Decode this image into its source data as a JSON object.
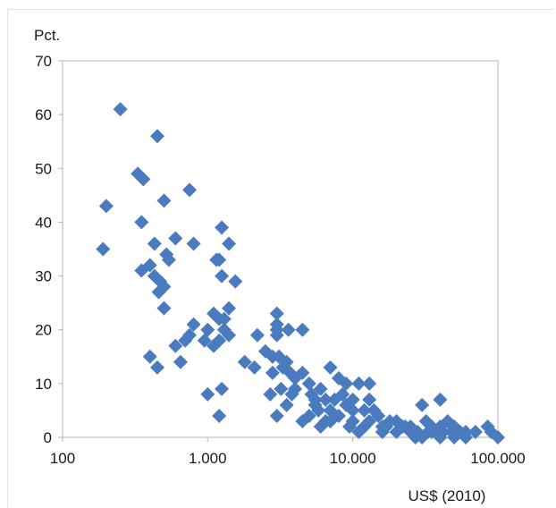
{
  "chart_data": {
    "type": "scatter",
    "title": "",
    "xlabel": "US$ (2010)",
    "ylabel": "Pct.",
    "x_scale": "log",
    "xlim": [
      100,
      100000
    ],
    "ylim": [
      0,
      70
    ],
    "x_ticks": [
      100,
      1000,
      10000,
      100000
    ],
    "x_tick_labels": [
      "100",
      "1.000",
      "10.000",
      "100.000"
    ],
    "y_ticks": [
      0,
      10,
      20,
      30,
      40,
      50,
      60,
      70
    ],
    "y_tick_labels": [
      "0",
      "10",
      "20",
      "30",
      "40",
      "50",
      "60",
      "70"
    ],
    "grid": false,
    "legend": "none",
    "marker": "diamond",
    "marker_color": "#4a7bbf",
    "points": [
      [
        250,
        61
      ],
      [
        450,
        56
      ],
      [
        330,
        49
      ],
      [
        360,
        48
      ],
      [
        750,
        46
      ],
      [
        200,
        43
      ],
      [
        500,
        44
      ],
      [
        350,
        40
      ],
      [
        1250,
        39
      ],
      [
        1400,
        36
      ],
      [
        600,
        37
      ],
      [
        430,
        36
      ],
      [
        800,
        36
      ],
      [
        190,
        35
      ],
      [
        520,
        34
      ],
      [
        540,
        33
      ],
      [
        1150,
        33
      ],
      [
        1200,
        33
      ],
      [
        400,
        32
      ],
      [
        350,
        31
      ],
      [
        430,
        30
      ],
      [
        1250,
        30
      ],
      [
        1550,
        29
      ],
      [
        470,
        29
      ],
      [
        500,
        28
      ],
      [
        460,
        27
      ],
      [
        1400,
        24
      ],
      [
        500,
        24
      ],
      [
        1100,
        23
      ],
      [
        3000,
        23
      ],
      [
        1200,
        22
      ],
      [
        1300,
        22
      ],
      [
        3000,
        21
      ],
      [
        800,
        21
      ],
      [
        3000,
        20
      ],
      [
        4500,
        20
      ],
      [
        1000,
        20
      ],
      [
        1300,
        20
      ],
      [
        1400,
        19
      ],
      [
        3600,
        20
      ],
      [
        750,
        19
      ],
      [
        700,
        18
      ],
      [
        950,
        18
      ],
      [
        1100,
        17
      ],
      [
        1200,
        18
      ],
      [
        1800,
        14
      ],
      [
        2200,
        19
      ],
      [
        3000,
        19
      ],
      [
        2100,
        13
      ],
      [
        2500,
        16
      ],
      [
        600,
        17
      ],
      [
        650,
        14
      ],
      [
        400,
        15
      ],
      [
        450,
        13
      ],
      [
        1000,
        8
      ],
      [
        1200,
        4
      ],
      [
        1250,
        9
      ],
      [
        2800,
        15
      ],
      [
        3100,
        15
      ],
      [
        3500,
        14
      ],
      [
        2800,
        12
      ],
      [
        3300,
        13
      ],
      [
        3700,
        12
      ],
      [
        4000,
        11
      ],
      [
        4500,
        12
      ],
      [
        2700,
        8
      ],
      [
        3200,
        9
      ],
      [
        3800,
        8
      ],
      [
        3000,
        4
      ],
      [
        4500,
        3
      ],
      [
        5000,
        10
      ],
      [
        5200,
        8
      ],
      [
        5500,
        6
      ],
      [
        6000,
        9
      ],
      [
        6500,
        7
      ],
      [
        5800,
        5
      ],
      [
        6500,
        3
      ],
      [
        7000,
        13
      ],
      [
        8000,
        11
      ],
      [
        9000,
        10
      ],
      [
        11000,
        10
      ],
      [
        13000,
        10
      ],
      [
        7500,
        7
      ],
      [
        9000,
        6
      ],
      [
        10000,
        5
      ],
      [
        12000,
        5
      ],
      [
        14000,
        5
      ],
      [
        10000,
        3
      ],
      [
        12000,
        2
      ],
      [
        15000,
        4
      ],
      [
        16000,
        2
      ],
      [
        18000,
        3
      ],
      [
        20000,
        3
      ],
      [
        22000,
        2
      ],
      [
        25000,
        2
      ],
      [
        28000,
        1
      ],
      [
        30000,
        6
      ],
      [
        32000,
        3
      ],
      [
        35000,
        2
      ],
      [
        40000,
        7
      ],
      [
        40000,
        2
      ],
      [
        45000,
        3
      ],
      [
        48000,
        1
      ],
      [
        50000,
        2
      ],
      [
        55000,
        1
      ],
      [
        60000,
        1
      ],
      [
        70000,
        1
      ],
      [
        85000,
        2
      ],
      [
        90000,
        1
      ],
      [
        100000,
        0
      ],
      [
        30000,
        0
      ],
      [
        40000,
        0
      ],
      [
        25000,
        1
      ],
      [
        35000,
        1
      ],
      [
        60000,
        0
      ],
      [
        8000,
        4
      ],
      [
        9500,
        2
      ],
      [
        6000,
        2
      ],
      [
        7000,
        5
      ],
      [
        5000,
        4
      ],
      [
        11000,
        1
      ],
      [
        13000,
        3
      ],
      [
        16000,
        1
      ],
      [
        20000,
        1
      ],
      [
        4000,
        9
      ],
      [
        5500,
        7
      ],
      [
        3500,
        6
      ],
      [
        8500,
        8
      ],
      [
        13000,
        7
      ],
      [
        10000,
        7
      ],
      [
        7000,
        3
      ],
      [
        17000,
        2
      ],
      [
        23000,
        2
      ],
      [
        27000,
        0
      ],
      [
        33000,
        1
      ],
      [
        42000,
        1
      ],
      [
        50000,
        0
      ]
    ]
  }
}
